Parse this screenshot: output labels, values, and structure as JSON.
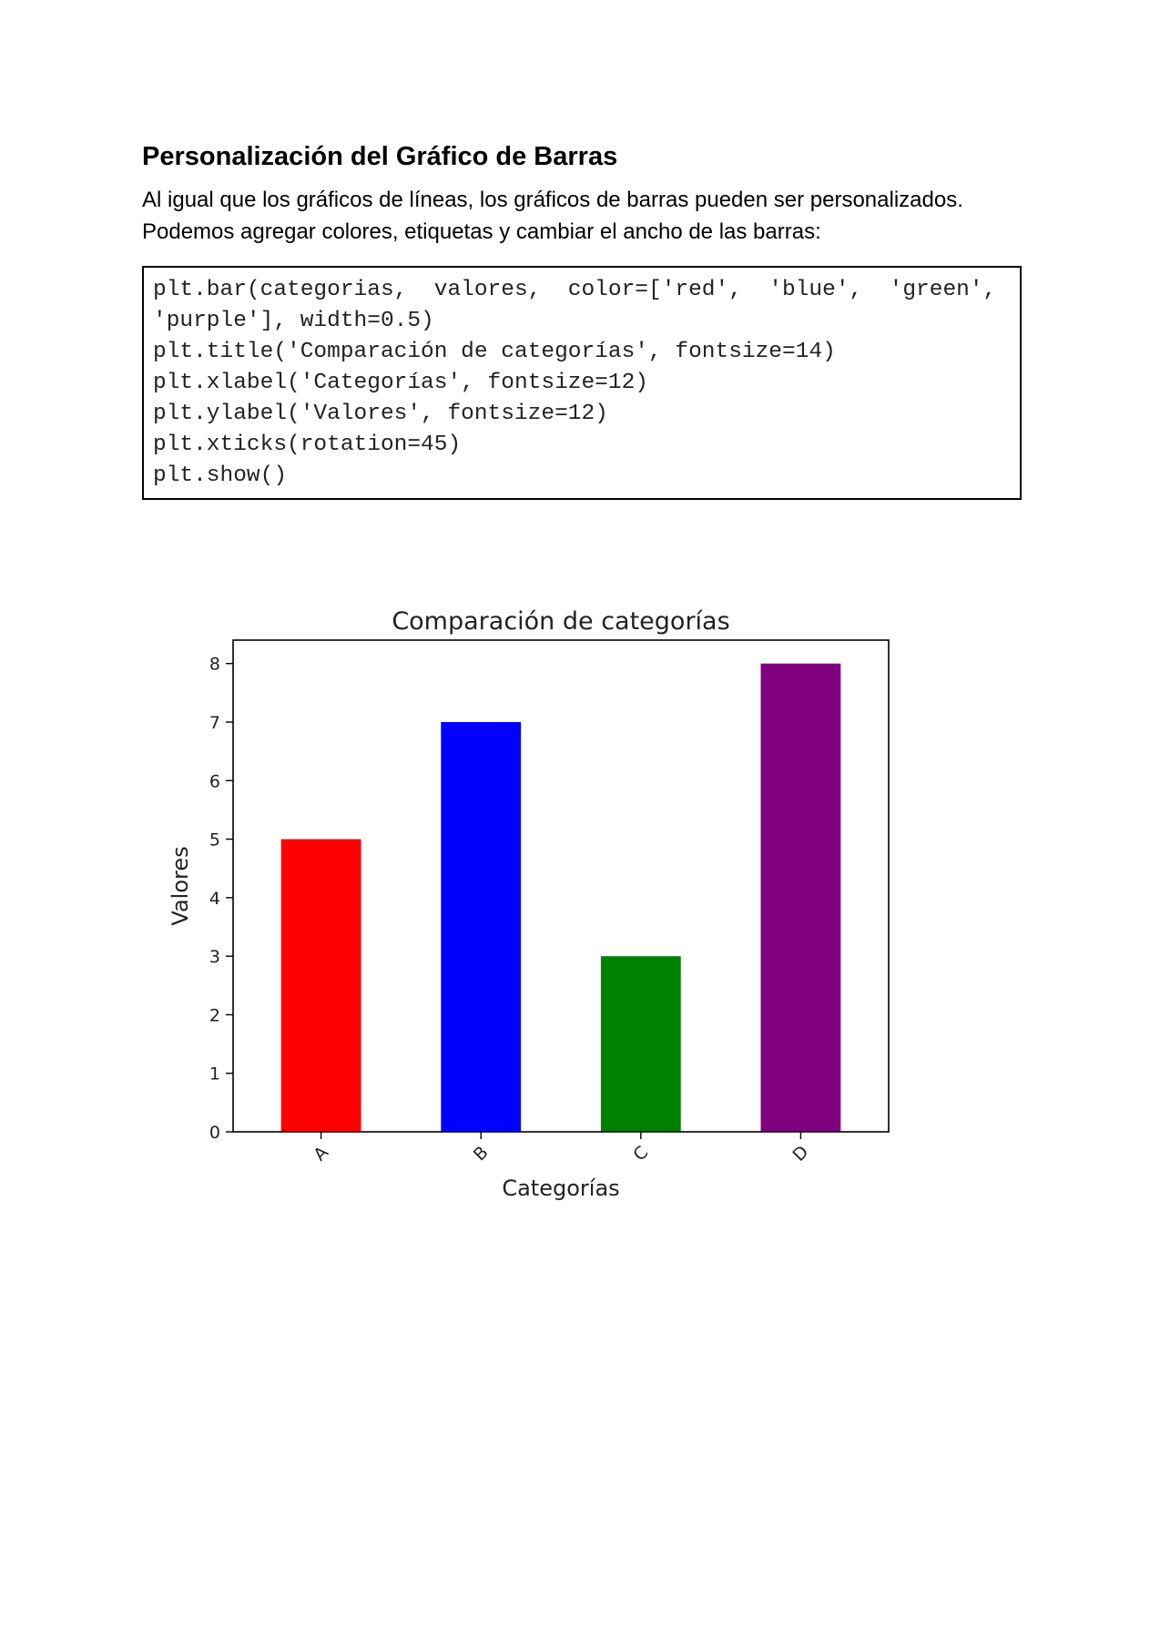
{
  "document": {
    "heading": "Personalización del Gráfico de Barras",
    "intro_lines": [
      "Al igual que los gráficos de líneas, los gráficos de barras pueden ser personalizados.",
      "Podemos agregar colores, etiquetas y cambiar el ancho de las barras:"
    ],
    "code_lines": [
      "plt.bar(categorias,  valores,  color=['red',  'blue',  'green',",
      "'purple'], width=0.5)",
      "plt.title('Comparación de categorías', fontsize=14)",
      "plt.xlabel('Categorías', fontsize=12)",
      "plt.ylabel('Valores', fontsize=12)",
      "plt.xticks(rotation=45)",
      "plt.show()"
    ]
  },
  "chart_data": {
    "type": "bar",
    "title": "Comparación de categorías",
    "xlabel": "Categorías",
    "ylabel": "Valores",
    "categories": [
      "A",
      "B",
      "C",
      "D"
    ],
    "values": [
      5,
      7,
      3,
      8
    ],
    "colors": [
      "#ff0000",
      "#0000ff",
      "#008000",
      "#800080"
    ],
    "ylim": [
      0,
      8.4
    ],
    "yticks": [
      0,
      1,
      2,
      3,
      4,
      5,
      6,
      7,
      8
    ],
    "bar_width": 0.5,
    "xtick_rotation": 45,
    "grid": false,
    "legend": "none"
  }
}
